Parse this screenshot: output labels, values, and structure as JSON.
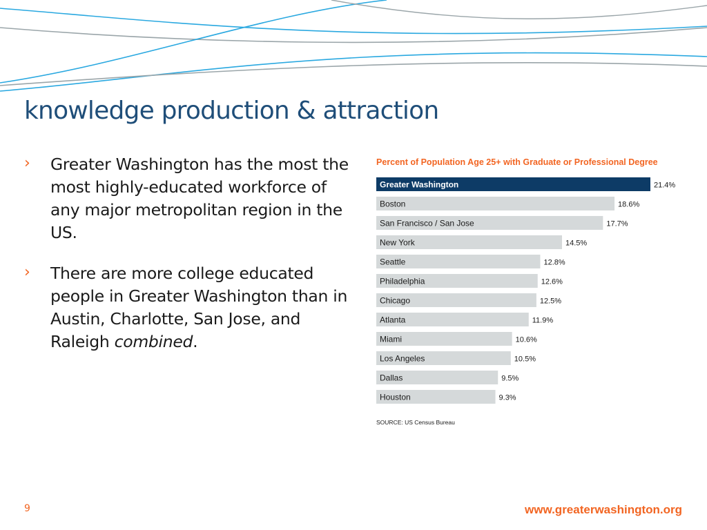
{
  "slide": {
    "title": "knowledge production & attraction",
    "bullets": [
      {
        "text": "Greater Washington has the most the most highly-educated workforce of any major metropolitan region in the US.",
        "emphasis": ""
      },
      {
        "text": "There are more college educated people in Greater Washington than in Austin, Charlotte, San Jose, and Raleigh ",
        "emphasis": "combined",
        "suffix": "."
      }
    ],
    "bullet_glyph": "›",
    "page_number": "9",
    "footer_url": "www.greaterwashington.org"
  },
  "colors": {
    "title": "#1f4e79",
    "accent_orange": "#f26522",
    "highlight_bar": "#0d3b66",
    "bar": "#d5d9da",
    "wave_blue": "#29a8e0",
    "wave_gray": "#9aa5a9"
  },
  "chart_data": {
    "type": "bar",
    "orientation": "horizontal",
    "title": "Percent of Population Age 25+ with Graduate or Professional Degree",
    "categories": [
      "Greater Washington",
      "Boston",
      "San Francisco / San Jose",
      "New York",
      "Seattle",
      "Philadelphia",
      "Chicago",
      "Atlanta",
      "Miami",
      "Los Angeles",
      "Dallas",
      "Houston"
    ],
    "values": [
      21.4,
      18.6,
      17.7,
      14.5,
      12.8,
      12.6,
      12.5,
      11.9,
      10.6,
      10.5,
      9.5,
      9.3
    ],
    "value_labels": [
      "21.4%",
      "18.6%",
      "17.7%",
      "14.5%",
      "12.8%",
      "12.6%",
      "12.5%",
      "11.9%",
      "10.6%",
      "10.5%",
      "9.5%",
      "9.3%"
    ],
    "highlighted_category": "Greater Washington",
    "xlim": [
      0,
      21.4
    ],
    "source": "SOURCE:  US Census Bureau",
    "grid": false
  }
}
